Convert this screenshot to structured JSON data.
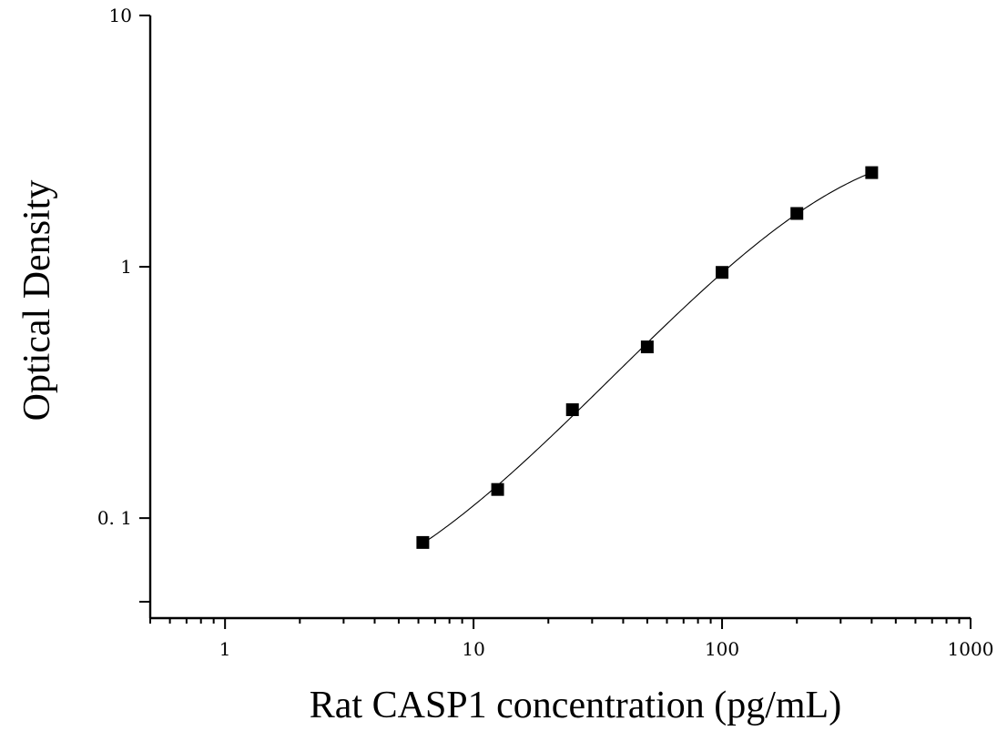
{
  "chart_data": {
    "type": "scatter",
    "xlabel": "Rat CASP1 concentration (pg/mL)",
    "ylabel": "Optical Density",
    "xscale": "log",
    "yscale": "log",
    "xlim": [
      0.5,
      1000
    ],
    "ylim": [
      0.04,
      10
    ],
    "x_ticks": [
      {
        "value": 1,
        "label": "1"
      },
      {
        "value": 10,
        "label": "10"
      },
      {
        "value": 100,
        "label": "100"
      },
      {
        "value": 1000,
        "label": "1000"
      }
    ],
    "y_ticks": [
      {
        "value": 0.1,
        "label": "0. 1"
      },
      {
        "value": 1,
        "label": "1"
      },
      {
        "value": 10,
        "label": "10"
      }
    ],
    "grid": false,
    "series": [
      {
        "marker": "square",
        "fit": "smooth curve",
        "points": [
          {
            "x": 6.25,
            "y": 0.08
          },
          {
            "x": 12.5,
            "y": 0.13
          },
          {
            "x": 25,
            "y": 0.27
          },
          {
            "x": 50,
            "y": 0.48
          },
          {
            "x": 100,
            "y": 0.95
          },
          {
            "x": 200,
            "y": 1.63
          },
          {
            "x": 400,
            "y": 2.37
          }
        ]
      }
    ]
  }
}
